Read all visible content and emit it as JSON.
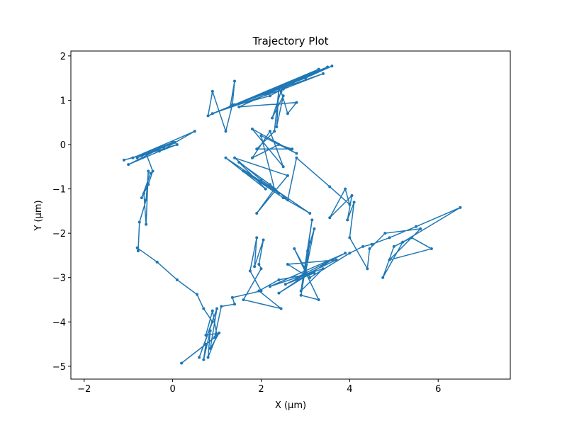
{
  "chart_data": {
    "type": "line",
    "title": "Trajectory Plot",
    "xlabel": "X (μm)",
    "ylabel": "Y (μm)",
    "xlim": [
      -2.3,
      7.63
    ],
    "ylim": [
      -5.29,
      2.11
    ],
    "xticks": [
      {
        "value": -2,
        "label": "−2"
      },
      0,
      2,
      4,
      6
    ],
    "yticks": [
      {
        "value": -5,
        "label": "−5"
      },
      {
        "value": -4,
        "label": "−4"
      },
      {
        "value": -3,
        "label": "−3"
      },
      {
        "value": -2,
        "label": "−2"
      },
      {
        "value": -1,
        "label": "−1"
      },
      0,
      1,
      2
    ],
    "grid": false,
    "series": [
      {
        "color": "#1f77b4",
        "x": [
          -0.2,
          -0.8,
          0.05,
          -0.5,
          -0.7,
          0.1,
          -0.3,
          -1.0,
          0.0,
          -0.9,
          0.5,
          -0.2,
          -1.1,
          -0.6,
          -0.45,
          -0.55,
          -0.7,
          -0.5,
          -0.65,
          -0.6,
          -0.55,
          -0.6,
          -0.75,
          -0.78,
          -0.8,
          -0.35,
          0.1,
          0.55,
          0.7,
          0.9,
          0.6,
          1.0,
          0.85,
          1.05,
          0.75,
          0.9,
          1.0,
          0.8,
          0.85,
          0.7,
          0.75,
          0.2,
          0.95,
          1.1,
          1.4,
          1.35,
          2.0,
          1.75,
          1.9,
          1.85,
          2.05,
          1.95,
          2.0,
          1.6,
          2.45,
          1.95,
          2.4,
          3.2,
          2.55,
          3.7,
          2.6,
          3.0,
          2.4,
          3.6,
          2.8,
          3.9,
          2.2,
          3.4,
          2.9,
          3.15,
          3.05,
          3.2,
          3.0,
          3.1,
          2.9,
          3.3,
          2.75,
          3.1,
          4.0,
          4.3,
          4.5,
          4.9,
          5.5,
          6.5,
          5.2,
          4.75,
          5.0,
          5.4,
          5.85,
          4.9,
          5.6,
          4.8,
          4.45,
          4.4,
          4.0,
          4.1,
          3.95,
          4.05,
          3.55,
          3.9,
          4.0,
          3.55,
          2.8,
          2.6,
          2.2,
          1.5,
          2.1,
          1.2,
          2.4,
          1.6,
          2.5,
          3.1,
          2.0,
          1.4,
          2.6,
          1.9,
          2.3,
          2.0,
          2.8,
          1.8,
          2.5,
          2.2,
          1.8,
          2.4,
          2.7,
          1.9,
          2.3,
          2.4,
          2.35,
          2.5,
          2.25,
          2.45,
          2.6,
          2.8,
          1.5,
          3.5,
          0.9,
          2.5,
          3.4,
          1.4,
          3.6,
          3.0,
          1.3,
          2.2,
          3.3,
          0.8,
          0.9,
          1.2,
          1.35,
          1.4,
          1.3
        ],
        "values": [
          -0.05,
          -0.3,
          0.05,
          -0.15,
          -0.25,
          0.0,
          -0.15,
          -0.45,
          0.05,
          -0.3,
          0.3,
          -0.1,
          -0.35,
          -0.2,
          -0.6,
          -0.9,
          -1.2,
          -0.65,
          -1.1,
          -1.8,
          -0.6,
          -1.25,
          -1.75,
          -2.4,
          -2.33,
          -2.65,
          -3.05,
          -3.38,
          -3.7,
          -4.0,
          -4.8,
          -3.7,
          -4.6,
          -4.25,
          -4.3,
          -3.75,
          -4.3,
          -4.8,
          -4.2,
          -4.85,
          -4.5,
          -4.93,
          -4.35,
          -3.65,
          -3.6,
          -3.45,
          -3.3,
          -2.85,
          -2.1,
          -2.75,
          -2.15,
          -2.7,
          -2.8,
          -3.5,
          -3.7,
          -3.3,
          -3.05,
          -2.9,
          -3.15,
          -2.6,
          -2.7,
          -2.95,
          -3.35,
          -2.6,
          -3.0,
          -2.45,
          -3.2,
          -2.8,
          -3.3,
          -1.7,
          -2.4,
          -1.9,
          -2.9,
          -2.2,
          -3.4,
          -3.5,
          -2.35,
          -3.0,
          -2.45,
          -2.3,
          -2.25,
          -2.1,
          -1.85,
          -1.42,
          -2.2,
          -3.0,
          -2.3,
          -2.1,
          -2.35,
          -2.6,
          -1.9,
          -2.0,
          -2.35,
          -2.8,
          -2.1,
          -1.3,
          -1.7,
          -1.15,
          -1.65,
          -1.0,
          -1.35,
          -0.95,
          -0.3,
          -1.25,
          -0.9,
          -0.4,
          -1.0,
          -0.3,
          -1.1,
          -0.6,
          -1.2,
          -1.55,
          -0.8,
          -0.3,
          -0.7,
          -1.55,
          -1.0,
          0.2,
          -0.2,
          0.35,
          -0.5,
          0.3,
          -0.3,
          0.0,
          -0.1,
          -0.1,
          0.3,
          1.25,
          0.4,
          1.1,
          0.6,
          1.2,
          0.7,
          0.95,
          0.85,
          1.75,
          0.7,
          1.25,
          1.6,
          0.9,
          1.77,
          1.5,
          0.85,
          1.1,
          1.7,
          0.65,
          1.2,
          0.3,
          0.9,
          1.43,
          0.85
        ]
      }
    ]
  }
}
